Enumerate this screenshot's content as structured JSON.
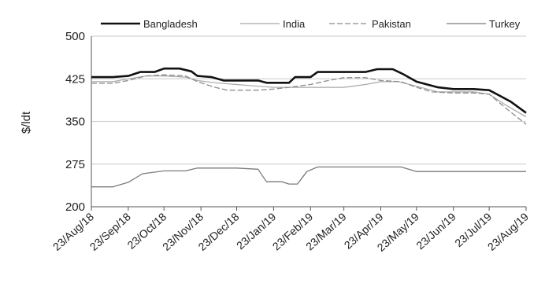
{
  "chart_data": {
    "type": "line",
    "title": "",
    "xlabel": "",
    "ylabel": "$/ldt",
    "ylim": [
      200,
      500
    ],
    "yticks": [
      200,
      275,
      350,
      425,
      500
    ],
    "xlim": [
      "2018-08-23",
      "2019-08-23"
    ],
    "xticks": [
      {
        "date": "2018-08-23",
        "label": "23/Aug/18"
      },
      {
        "date": "2018-09-23",
        "label": "23/Sep/18"
      },
      {
        "date": "2018-10-23",
        "label": "23/Oct/18"
      },
      {
        "date": "2018-11-23",
        "label": "23/Nov/18"
      },
      {
        "date": "2018-12-23",
        "label": "23/Dec/18"
      },
      {
        "date": "2019-01-23",
        "label": "23/Jan/19"
      },
      {
        "date": "2019-02-23",
        "label": "23/Feb/19"
      },
      {
        "date": "2019-03-23",
        "label": "23/Mar/19"
      },
      {
        "date": "2019-04-23",
        "label": "23/Apr/19"
      },
      {
        "date": "2019-05-23",
        "label": "23/May/19"
      },
      {
        "date": "2019-06-23",
        "label": "23/Jun/19"
      },
      {
        "date": "2019-07-23",
        "label": "23/Jul/19"
      },
      {
        "date": "2019-08-23",
        "label": "23/Aug/19"
      }
    ],
    "grid": {
      "horizontal": true,
      "vertical": false
    },
    "legend": "top",
    "series": [
      {
        "name": "Bangladesh",
        "color": "#111111",
        "style": "solid-thick",
        "points": [
          [
            "2018-08-23",
            428
          ],
          [
            "2018-09-10",
            428
          ],
          [
            "2018-09-23",
            430
          ],
          [
            "2018-10-03",
            437
          ],
          [
            "2018-10-15",
            437
          ],
          [
            "2018-10-23",
            443
          ],
          [
            "2018-11-05",
            443
          ],
          [
            "2018-11-15",
            438
          ],
          [
            "2018-11-20",
            430
          ],
          [
            "2018-12-02",
            428
          ],
          [
            "2018-12-12",
            422
          ],
          [
            "2018-12-23",
            422
          ],
          [
            "2019-01-10",
            422
          ],
          [
            "2019-01-17",
            418
          ],
          [
            "2019-01-30",
            418
          ],
          [
            "2019-02-05",
            418
          ],
          [
            "2019-02-10",
            428
          ],
          [
            "2019-02-23",
            428
          ],
          [
            "2019-03-01",
            437
          ],
          [
            "2019-03-23",
            437
          ],
          [
            "2019-04-10",
            437
          ],
          [
            "2019-04-20",
            442
          ],
          [
            "2019-05-03",
            442
          ],
          [
            "2019-05-12",
            433
          ],
          [
            "2019-05-23",
            420
          ],
          [
            "2019-06-10",
            410
          ],
          [
            "2019-06-23",
            407
          ],
          [
            "2019-07-10",
            407
          ],
          [
            "2019-07-23",
            405
          ],
          [
            "2019-08-01",
            395
          ],
          [
            "2019-08-10",
            385
          ],
          [
            "2019-08-23",
            365
          ]
        ]
      },
      {
        "name": "India",
        "color": "#a8a8a8",
        "style": "solid-thin",
        "points": [
          [
            "2018-08-23",
            420
          ],
          [
            "2018-09-10",
            420
          ],
          [
            "2018-09-23",
            425
          ],
          [
            "2018-10-08",
            430
          ],
          [
            "2018-10-23",
            430
          ],
          [
            "2018-11-10",
            428
          ],
          [
            "2018-11-20",
            422
          ],
          [
            "2018-12-05",
            418
          ],
          [
            "2018-12-23",
            415
          ],
          [
            "2019-01-10",
            412
          ],
          [
            "2019-01-23",
            410
          ],
          [
            "2019-02-05",
            410
          ],
          [
            "2019-02-23",
            410
          ],
          [
            "2019-03-10",
            410
          ],
          [
            "2019-03-23",
            410
          ],
          [
            "2019-04-10",
            415
          ],
          [
            "2019-04-23",
            420
          ],
          [
            "2019-05-08",
            420
          ],
          [
            "2019-05-23",
            412
          ],
          [
            "2019-06-10",
            402
          ],
          [
            "2019-06-23",
            402
          ],
          [
            "2019-07-10",
            402
          ],
          [
            "2019-07-23",
            398
          ],
          [
            "2019-08-05",
            380
          ],
          [
            "2019-08-23",
            358
          ]
        ]
      },
      {
        "name": "Pakistan",
        "color": "#8c8c8c",
        "style": "dashed",
        "points": [
          [
            "2018-08-23",
            417
          ],
          [
            "2018-09-10",
            417
          ],
          [
            "2018-09-23",
            422
          ],
          [
            "2018-10-08",
            430
          ],
          [
            "2018-10-23",
            432
          ],
          [
            "2018-11-10",
            430
          ],
          [
            "2018-11-20",
            420
          ],
          [
            "2018-12-05",
            410
          ],
          [
            "2018-12-15",
            405
          ],
          [
            "2018-12-23",
            405
          ],
          [
            "2019-01-10",
            405
          ],
          [
            "2019-01-23",
            407
          ],
          [
            "2019-02-05",
            410
          ],
          [
            "2019-02-23",
            415
          ],
          [
            "2019-03-10",
            422
          ],
          [
            "2019-03-23",
            427
          ],
          [
            "2019-04-10",
            427
          ],
          [
            "2019-04-23",
            422
          ],
          [
            "2019-05-10",
            420
          ],
          [
            "2019-05-23",
            410
          ],
          [
            "2019-06-05",
            402
          ],
          [
            "2019-06-23",
            400
          ],
          [
            "2019-07-10",
            400
          ],
          [
            "2019-07-23",
            398
          ],
          [
            "2019-08-05",
            375
          ],
          [
            "2019-08-23",
            345
          ]
        ]
      },
      {
        "name": "Turkey",
        "color": "#7a7a7a",
        "style": "solid-medium",
        "points": [
          [
            "2018-08-23",
            235
          ],
          [
            "2018-09-10",
            235
          ],
          [
            "2018-09-23",
            243
          ],
          [
            "2018-10-05",
            258
          ],
          [
            "2018-10-23",
            263
          ],
          [
            "2018-11-10",
            263
          ],
          [
            "2018-11-20",
            268
          ],
          [
            "2018-12-23",
            268
          ],
          [
            "2019-01-10",
            266
          ],
          [
            "2019-01-17",
            244
          ],
          [
            "2019-01-30",
            244
          ],
          [
            "2019-02-05",
            240
          ],
          [
            "2019-02-12",
            240
          ],
          [
            "2019-02-20",
            262
          ],
          [
            "2019-03-01",
            270
          ],
          [
            "2019-03-23",
            270
          ],
          [
            "2019-05-10",
            270
          ],
          [
            "2019-05-23",
            262
          ],
          [
            "2019-06-23",
            262
          ],
          [
            "2019-07-23",
            262
          ],
          [
            "2019-08-23",
            262
          ]
        ]
      }
    ]
  }
}
